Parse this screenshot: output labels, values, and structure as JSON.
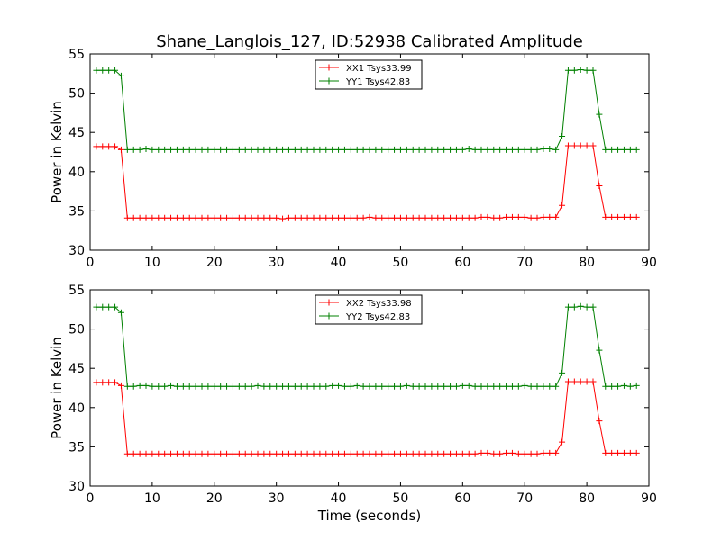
{
  "figure": {
    "title": "Shane_Langlois_127, ID:52938 Calibrated Amplitude",
    "xlabel": "Time (seconds)"
  },
  "chart_data": [
    {
      "type": "line",
      "ylabel": "Power in Kelvin",
      "xlim": [
        0,
        90
      ],
      "ylim": [
        30,
        55
      ],
      "xticks": [
        0,
        10,
        20,
        30,
        40,
        50,
        60,
        70,
        80,
        90
      ],
      "yticks": [
        30,
        35,
        40,
        45,
        50,
        55
      ],
      "legend_position": "top-center",
      "series": [
        {
          "name": "XX1 Tsys33.99",
          "color": "#ff0000",
          "x": [
            1,
            2,
            3,
            4,
            5,
            6,
            7,
            8,
            9,
            10,
            11,
            12,
            13,
            14,
            15,
            16,
            17,
            18,
            19,
            20,
            21,
            22,
            23,
            24,
            25,
            26,
            27,
            28,
            29,
            30,
            31,
            32,
            33,
            34,
            35,
            36,
            37,
            38,
            39,
            40,
            41,
            42,
            43,
            44,
            45,
            46,
            47,
            48,
            49,
            50,
            51,
            52,
            53,
            54,
            55,
            56,
            57,
            58,
            59,
            60,
            61,
            62,
            63,
            64,
            65,
            66,
            67,
            68,
            69,
            70,
            71,
            72,
            73,
            74,
            75,
            76,
            77,
            78,
            79,
            80,
            81,
            82,
            83,
            84,
            85,
            86,
            87,
            88
          ],
          "y": [
            43.2,
            43.2,
            43.2,
            43.2,
            42.8,
            34.1,
            34.1,
            34.1,
            34.1,
            34.1,
            34.1,
            34.1,
            34.1,
            34.1,
            34.1,
            34.1,
            34.1,
            34.1,
            34.1,
            34.1,
            34.1,
            34.1,
            34.1,
            34.1,
            34.1,
            34.1,
            34.1,
            34.1,
            34.1,
            34.1,
            34.0,
            34.1,
            34.1,
            34.1,
            34.1,
            34.1,
            34.1,
            34.1,
            34.1,
            34.1,
            34.1,
            34.1,
            34.1,
            34.1,
            34.2,
            34.1,
            34.1,
            34.1,
            34.1,
            34.1,
            34.1,
            34.1,
            34.1,
            34.1,
            34.1,
            34.1,
            34.1,
            34.1,
            34.1,
            34.1,
            34.1,
            34.1,
            34.2,
            34.2,
            34.1,
            34.1,
            34.2,
            34.2,
            34.2,
            34.2,
            34.1,
            34.1,
            34.2,
            34.2,
            34.2,
            35.7,
            43.3,
            43.3,
            43.3,
            43.3,
            43.3,
            38.2,
            34.2,
            34.2,
            34.2,
            34.2,
            34.2,
            34.2
          ]
        },
        {
          "name": "YY1 Tsys42.83",
          "color": "#008000",
          "x": [
            1,
            2,
            3,
            4,
            5,
            6,
            7,
            8,
            9,
            10,
            11,
            12,
            13,
            14,
            15,
            16,
            17,
            18,
            19,
            20,
            21,
            22,
            23,
            24,
            25,
            26,
            27,
            28,
            29,
            30,
            31,
            32,
            33,
            34,
            35,
            36,
            37,
            38,
            39,
            40,
            41,
            42,
            43,
            44,
            45,
            46,
            47,
            48,
            49,
            50,
            51,
            52,
            53,
            54,
            55,
            56,
            57,
            58,
            59,
            60,
            61,
            62,
            63,
            64,
            65,
            66,
            67,
            68,
            69,
            70,
            71,
            72,
            73,
            74,
            75,
            76,
            77,
            78,
            79,
            80,
            81,
            82,
            83,
            84,
            85,
            86,
            87,
            88
          ],
          "y": [
            52.9,
            52.9,
            52.9,
            52.9,
            52.2,
            42.8,
            42.8,
            42.8,
            42.9,
            42.8,
            42.8,
            42.8,
            42.8,
            42.8,
            42.8,
            42.8,
            42.8,
            42.8,
            42.8,
            42.8,
            42.8,
            42.8,
            42.8,
            42.8,
            42.8,
            42.8,
            42.8,
            42.8,
            42.8,
            42.8,
            42.8,
            42.8,
            42.8,
            42.8,
            42.8,
            42.8,
            42.8,
            42.8,
            42.8,
            42.8,
            42.8,
            42.8,
            42.8,
            42.8,
            42.8,
            42.8,
            42.8,
            42.8,
            42.8,
            42.8,
            42.8,
            42.8,
            42.8,
            42.8,
            42.8,
            42.8,
            42.8,
            42.8,
            42.8,
            42.8,
            42.9,
            42.8,
            42.8,
            42.8,
            42.8,
            42.8,
            42.8,
            42.8,
            42.8,
            42.8,
            42.8,
            42.8,
            42.9,
            42.9,
            42.8,
            44.5,
            52.9,
            52.9,
            53.0,
            52.9,
            52.9,
            47.3,
            42.8,
            42.8,
            42.8,
            42.8,
            42.8,
            42.8
          ]
        }
      ]
    },
    {
      "type": "line",
      "ylabel": "Power in Kelvin",
      "xlabel": "Time (seconds)",
      "xlim": [
        0,
        90
      ],
      "ylim": [
        30,
        55
      ],
      "xticks": [
        0,
        10,
        20,
        30,
        40,
        50,
        60,
        70,
        80,
        90
      ],
      "yticks": [
        30,
        35,
        40,
        45,
        50,
        55
      ],
      "legend_position": "top-center",
      "series": [
        {
          "name": "XX2 Tsys33.98",
          "color": "#ff0000",
          "x": [
            1,
            2,
            3,
            4,
            5,
            6,
            7,
            8,
            9,
            10,
            11,
            12,
            13,
            14,
            15,
            16,
            17,
            18,
            19,
            20,
            21,
            22,
            23,
            24,
            25,
            26,
            27,
            28,
            29,
            30,
            31,
            32,
            33,
            34,
            35,
            36,
            37,
            38,
            39,
            40,
            41,
            42,
            43,
            44,
            45,
            46,
            47,
            48,
            49,
            50,
            51,
            52,
            53,
            54,
            55,
            56,
            57,
            58,
            59,
            60,
            61,
            62,
            63,
            64,
            65,
            66,
            67,
            68,
            69,
            70,
            71,
            72,
            73,
            74,
            75,
            76,
            77,
            78,
            79,
            80,
            81,
            82,
            83,
            84,
            85,
            86,
            87,
            88
          ],
          "y": [
            43.2,
            43.2,
            43.2,
            43.2,
            42.8,
            34.1,
            34.1,
            34.1,
            34.1,
            34.1,
            34.1,
            34.1,
            34.1,
            34.1,
            34.1,
            34.1,
            34.1,
            34.1,
            34.1,
            34.1,
            34.1,
            34.1,
            34.1,
            34.1,
            34.1,
            34.1,
            34.1,
            34.1,
            34.1,
            34.1,
            34.1,
            34.1,
            34.1,
            34.1,
            34.1,
            34.1,
            34.1,
            34.1,
            34.1,
            34.1,
            34.1,
            34.1,
            34.1,
            34.1,
            34.1,
            34.1,
            34.1,
            34.1,
            34.1,
            34.1,
            34.1,
            34.1,
            34.1,
            34.1,
            34.1,
            34.1,
            34.1,
            34.1,
            34.1,
            34.1,
            34.1,
            34.1,
            34.2,
            34.2,
            34.1,
            34.1,
            34.2,
            34.2,
            34.1,
            34.1,
            34.1,
            34.1,
            34.2,
            34.2,
            34.2,
            35.6,
            43.3,
            43.3,
            43.3,
            43.3,
            43.3,
            38.3,
            34.2,
            34.2,
            34.2,
            34.2,
            34.2,
            34.2
          ]
        },
        {
          "name": "YY2 Tsys42.83",
          "color": "#008000",
          "x": [
            1,
            2,
            3,
            4,
            5,
            6,
            7,
            8,
            9,
            10,
            11,
            12,
            13,
            14,
            15,
            16,
            17,
            18,
            19,
            20,
            21,
            22,
            23,
            24,
            25,
            26,
            27,
            28,
            29,
            30,
            31,
            32,
            33,
            34,
            35,
            36,
            37,
            38,
            39,
            40,
            41,
            42,
            43,
            44,
            45,
            46,
            47,
            48,
            49,
            50,
            51,
            52,
            53,
            54,
            55,
            56,
            57,
            58,
            59,
            60,
            61,
            62,
            63,
            64,
            65,
            66,
            67,
            68,
            69,
            70,
            71,
            72,
            73,
            74,
            75,
            76,
            77,
            78,
            79,
            80,
            81,
            82,
            83,
            84,
            85,
            86,
            87,
            88
          ],
          "y": [
            52.8,
            52.8,
            52.8,
            52.8,
            52.1,
            42.7,
            42.7,
            42.8,
            42.8,
            42.7,
            42.7,
            42.7,
            42.8,
            42.7,
            42.7,
            42.7,
            42.7,
            42.7,
            42.7,
            42.7,
            42.7,
            42.7,
            42.7,
            42.7,
            42.7,
            42.7,
            42.8,
            42.7,
            42.7,
            42.7,
            42.7,
            42.7,
            42.7,
            42.7,
            42.7,
            42.7,
            42.7,
            42.7,
            42.8,
            42.8,
            42.7,
            42.7,
            42.8,
            42.7,
            42.7,
            42.7,
            42.7,
            42.7,
            42.7,
            42.7,
            42.8,
            42.7,
            42.7,
            42.7,
            42.7,
            42.7,
            42.7,
            42.7,
            42.7,
            42.8,
            42.8,
            42.7,
            42.7,
            42.7,
            42.7,
            42.7,
            42.7,
            42.7,
            42.7,
            42.8,
            42.7,
            42.7,
            42.7,
            42.7,
            42.7,
            44.4,
            52.8,
            52.8,
            52.9,
            52.8,
            52.8,
            47.3,
            42.7,
            42.7,
            42.7,
            42.8,
            42.7,
            42.8
          ]
        }
      ]
    }
  ]
}
